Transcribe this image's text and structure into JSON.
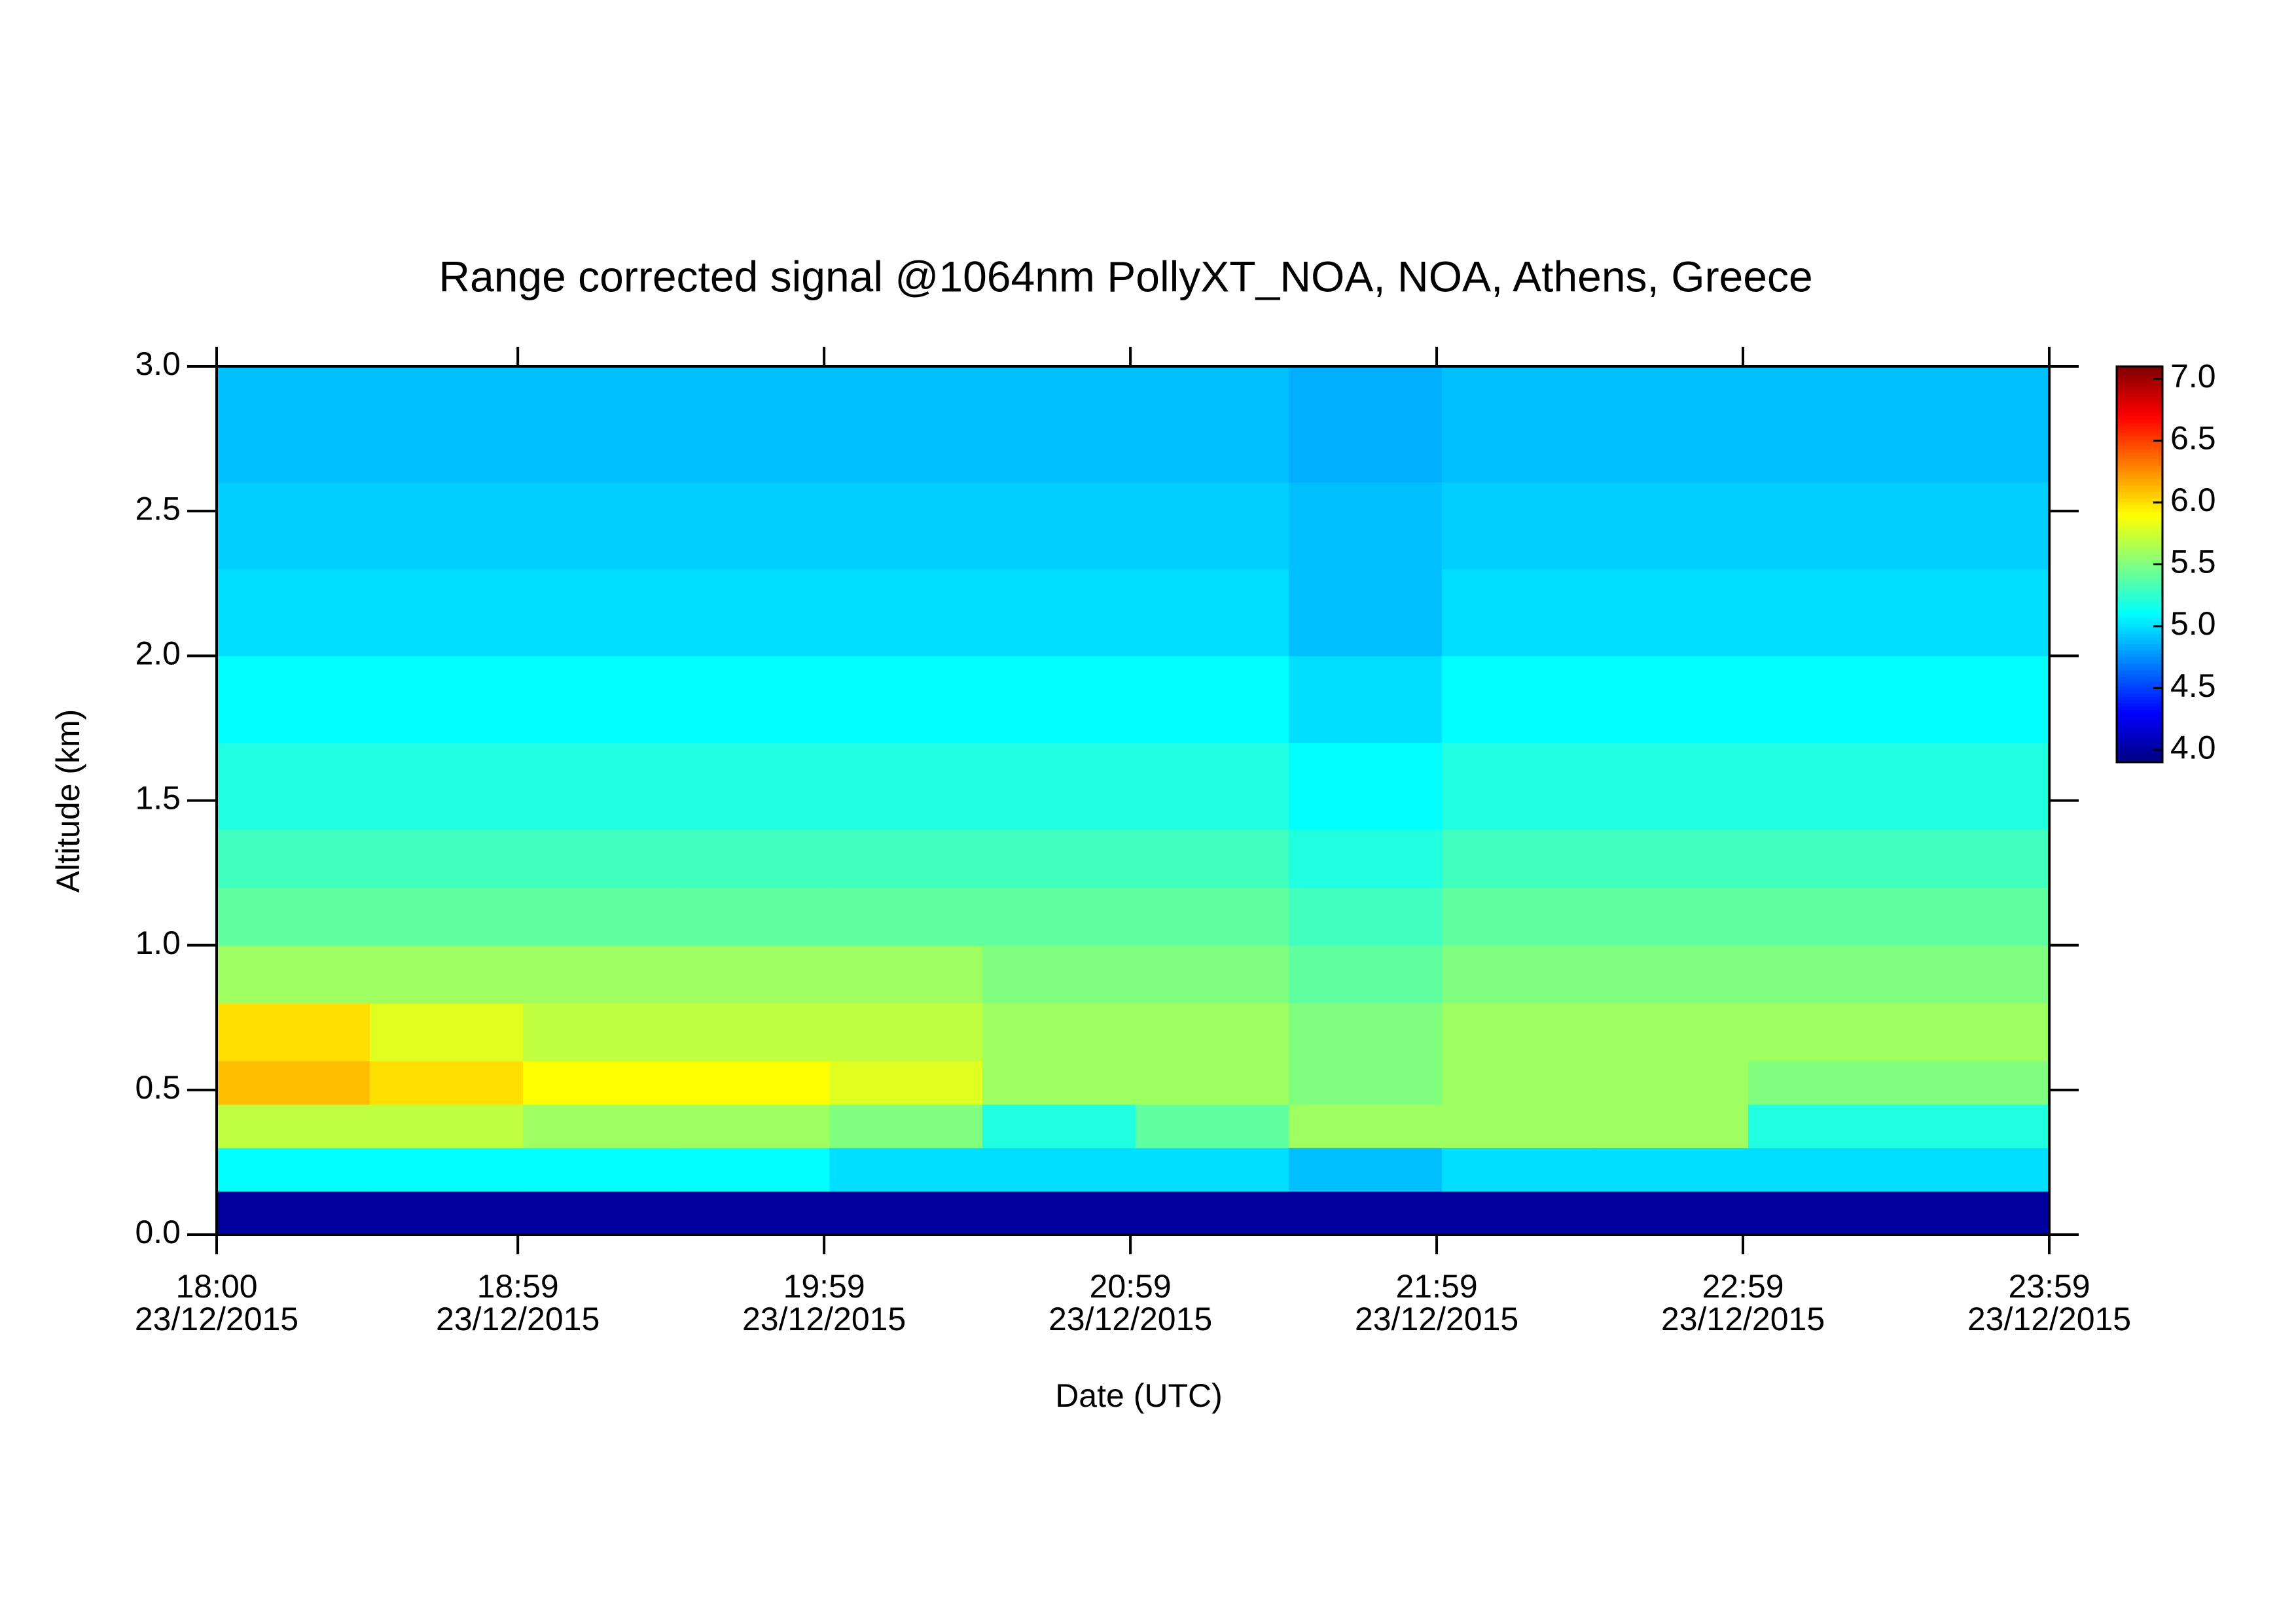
{
  "chart_data": {
    "type": "heatmap",
    "title": "Range corrected signal @1064nm  PollyXT_NOA, NOA, Athens, Greece",
    "x_label": "Date (UTC)",
    "y_label": "Altitude (km)",
    "xlim": [
      "2015-12-23 18:00",
      "2015-12-23 23:59"
    ],
    "xticks": [
      {
        "value": "2015-12-23 18:00",
        "label": [
          "18:00",
          "23/12/2015"
        ]
      },
      {
        "value": "2015-12-23 18:59",
        "label": [
          "18:59",
          "23/12/2015"
        ]
      },
      {
        "value": "2015-12-23 19:59",
        "label": [
          "19:59",
          "23/12/2015"
        ]
      },
      {
        "value": "2015-12-23 20:59",
        "label": [
          "20:59",
          "23/12/2015"
        ]
      },
      {
        "value": "2015-12-23 21:59",
        "label": [
          "21:59",
          "23/12/2015"
        ]
      },
      {
        "value": "2015-12-23 22:59",
        "label": [
          "22:59",
          "23/12/2015"
        ]
      },
      {
        "value": "2015-12-23 23:59",
        "label": [
          "23:59",
          "23/12/2015"
        ]
      }
    ],
    "ylim": [
      0,
      3
    ],
    "yticks": [
      {
        "value": 0,
        "label": "0.0"
      },
      {
        "value": 0.5,
        "label": "0.5"
      },
      {
        "value": 1,
        "label": "1.0"
      },
      {
        "value": 1.5,
        "label": "1.5"
      },
      {
        "value": 2,
        "label": "2.0"
      },
      {
        "value": 2.5,
        "label": "2.5"
      },
      {
        "value": 3,
        "label": "3.0"
      }
    ],
    "zlim": [
      3.9,
      7.1
    ],
    "colormap": "jet",
    "cticks": [
      {
        "value": 4,
        "label": "4.0"
      },
      {
        "value": 4.5,
        "label": "4.5"
      },
      {
        "value": 5,
        "label": "5.0"
      },
      {
        "value": 5.5,
        "label": "5.5"
      },
      {
        "value": 6,
        "label": "6.0"
      },
      {
        "value": 6.5,
        "label": "6.5"
      },
      {
        "value": 7,
        "label": "7.0"
      }
    ],
    "x": [
      "2015-12-23 18:00",
      "2015-12-23 18:30",
      "2015-12-23 19:00",
      "2015-12-23 19:30",
      "2015-12-23 20:00",
      "2015-12-23 20:30",
      "2015-12-23 21:00",
      "2015-12-23 21:30",
      "2015-12-23 22:00",
      "2015-12-23 22:30",
      "2015-12-23 23:00",
      "2015-12-23 23:30"
    ],
    "y": [
      0,
      0.15,
      0.3,
      0.45,
      0.6,
      0.8,
      1.0,
      1.2,
      1.4,
      1.7,
      2.0,
      2.3,
      2.6
    ],
    "z": [
      [
        4.0,
        4.0,
        4.0,
        4.0,
        4.0,
        4.0,
        4.0,
        4.0,
        4.0,
        4.0,
        4.0,
        4.0
      ],
      [
        5.1,
        5.1,
        5.1,
        5.1,
        5.0,
        5.0,
        5.0,
        4.9,
        5.0,
        5.0,
        5.0,
        5.0
      ],
      [
        5.7,
        5.7,
        5.6,
        5.6,
        5.5,
        5.2,
        5.4,
        5.6,
        5.6,
        5.6,
        5.2,
        5.2
      ],
      [
        6.1,
        6.0,
        5.9,
        5.9,
        5.8,
        5.6,
        5.6,
        5.5,
        5.6,
        5.6,
        5.5,
        5.5
      ],
      [
        6.0,
        5.8,
        5.7,
        5.7,
        5.7,
        5.6,
        5.6,
        5.5,
        5.6,
        5.6,
        5.6,
        5.6
      ],
      [
        5.6,
        5.6,
        5.6,
        5.6,
        5.6,
        5.5,
        5.5,
        5.4,
        5.5,
        5.5,
        5.5,
        5.5
      ],
      [
        5.4,
        5.4,
        5.4,
        5.4,
        5.4,
        5.4,
        5.4,
        5.3,
        5.4,
        5.4,
        5.4,
        5.4
      ],
      [
        5.3,
        5.3,
        5.3,
        5.3,
        5.3,
        5.3,
        5.3,
        5.2,
        5.3,
        5.3,
        5.3,
        5.3
      ],
      [
        5.2,
        5.2,
        5.2,
        5.2,
        5.2,
        5.2,
        5.2,
        5.1,
        5.2,
        5.2,
        5.2,
        5.2
      ],
      [
        5.1,
        5.1,
        5.1,
        5.1,
        5.1,
        5.1,
        5.1,
        5.0,
        5.1,
        5.1,
        5.1,
        5.1
      ],
      [
        5.0,
        5.0,
        5.0,
        5.0,
        5.0,
        5.0,
        5.0,
        4.9,
        5.0,
        5.0,
        5.0,
        5.0
      ],
      [
        4.95,
        4.95,
        4.95,
        4.95,
        4.95,
        4.95,
        4.95,
        4.9,
        4.95,
        4.95,
        4.95,
        4.95
      ],
      [
        4.9,
        4.9,
        4.9,
        4.9,
        4.9,
        4.9,
        4.9,
        4.85,
        4.9,
        4.9,
        4.9,
        4.9
      ]
    ]
  }
}
